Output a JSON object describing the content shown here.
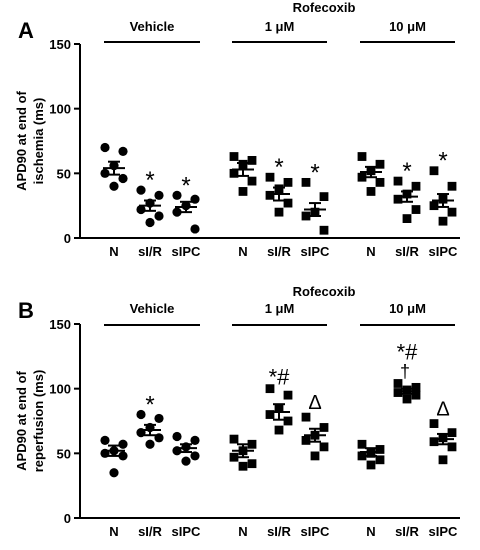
{
  "chart_data": [
    {
      "panel_label": "A",
      "type": "scatter",
      "ylabel_lines": [
        "APD90 at end of",
        "ischemia (ms)"
      ],
      "ylim": [
        0,
        150
      ],
      "yticks": [
        "0",
        "50",
        "100",
        "150"
      ],
      "group_headers": [
        "Vehicle",
        "1 μM",
        "10 μM"
      ],
      "drug_label": "Rofecoxib",
      "categories": [
        "N",
        "sI/R",
        "sIPC",
        "N",
        "sI/R",
        "sIPC",
        "N",
        "sI/R",
        "sIPC"
      ],
      "series": [
        {
          "group": "Vehicle",
          "condition": "N",
          "marker": "circle",
          "mean": 54,
          "sem": 5,
          "points": [
            70,
            67,
            56,
            50,
            46,
            40
          ],
          "annotation": ""
        },
        {
          "group": "Vehicle",
          "condition": "sI/R",
          "marker": "circle",
          "mean": 25,
          "sem": 4,
          "points": [
            37,
            33,
            27,
            22,
            17,
            12
          ],
          "annotation": "*"
        },
        {
          "group": "Vehicle",
          "condition": "sIPC",
          "marker": "circle",
          "mean": 24,
          "sem": 4,
          "points": [
            33,
            30,
            25,
            20,
            7
          ],
          "annotation": "*"
        },
        {
          "group": "1 μM",
          "condition": "N",
          "marker": "square",
          "mean": 53,
          "sem": 5,
          "points": [
            63,
            60,
            57,
            50,
            44,
            36
          ],
          "annotation": ""
        },
        {
          "group": "1 μM",
          "condition": "sI/R",
          "marker": "square",
          "mean": 34,
          "sem": 5,
          "points": [
            47,
            43,
            38,
            33,
            27,
            20
          ],
          "annotation": "*"
        },
        {
          "group": "1 μM",
          "condition": "sIPC",
          "marker": "square",
          "mean": 22,
          "sem": 5,
          "points": [
            43,
            32,
            20,
            17,
            6
          ],
          "annotation": "*"
        },
        {
          "group": "10 μM",
          "condition": "N",
          "marker": "square",
          "mean": 51,
          "sem": 4,
          "points": [
            63,
            57,
            52,
            47,
            43,
            36
          ],
          "annotation": ""
        },
        {
          "group": "10 μM",
          "condition": "sI/R",
          "marker": "square",
          "mean": 32,
          "sem": 4,
          "points": [
            44,
            40,
            34,
            30,
            22,
            15
          ],
          "annotation": "*"
        },
        {
          "group": "10 μM",
          "condition": "sIPC",
          "marker": "square",
          "mean": 29,
          "sem": 5,
          "points": [
            52,
            40,
            30,
            25,
            20,
            13
          ],
          "annotation": "*"
        }
      ]
    },
    {
      "panel_label": "B",
      "type": "scatter",
      "ylabel_lines": [
        "APD90 at end of",
        "reperfusion (ms)"
      ],
      "ylim": [
        0,
        150
      ],
      "yticks": [
        "0",
        "50",
        "100",
        "150"
      ],
      "group_headers": [
        "Vehicle",
        "1 μM",
        "10 μM"
      ],
      "drug_label": "Rofecoxib",
      "categories": [
        "N",
        "sI/R",
        "sIPC",
        "N",
        "sI/R",
        "sIPC",
        "N",
        "sI/R",
        "sIPC"
      ],
      "series": [
        {
          "group": "Vehicle",
          "condition": "N",
          "marker": "circle",
          "mean": 52,
          "sem": 4,
          "points": [
            60,
            57,
            52,
            50,
            48,
            35
          ],
          "annotation": ""
        },
        {
          "group": "Vehicle",
          "condition": "sI/R",
          "marker": "circle",
          "mean": 68,
          "sem": 4,
          "points": [
            80,
            77,
            70,
            66,
            62,
            57
          ],
          "annotation": "*"
        },
        {
          "group": "Vehicle",
          "condition": "sIPC",
          "marker": "circle",
          "mean": 54,
          "sem": 3,
          "points": [
            63,
            60,
            55,
            52,
            48,
            44
          ],
          "annotation": ""
        },
        {
          "group": "1 μM",
          "condition": "N",
          "marker": "square",
          "mean": 52,
          "sem": 5,
          "points": [
            61,
            57,
            52,
            47,
            42,
            40
          ],
          "annotation": ""
        },
        {
          "group": "1 μM",
          "condition": "sI/R",
          "marker": "square",
          "mean": 82,
          "sem": 6,
          "points": [
            100,
            95,
            85,
            80,
            75,
            68
          ],
          "annotation": "*#"
        },
        {
          "group": "1 μM",
          "condition": "sIPC",
          "marker": "square",
          "mean": 64,
          "sem": 5,
          "points": [
            78,
            70,
            64,
            60,
            55,
            48
          ],
          "annotation": "Δ"
        },
        {
          "group": "10 μM",
          "condition": "N",
          "marker": "square",
          "mean": 51,
          "sem": 3,
          "points": [
            57,
            53,
            50,
            48,
            45,
            41
          ],
          "annotation": ""
        },
        {
          "group": "10 μM",
          "condition": "sI/R",
          "marker": "square",
          "mean": 98,
          "sem": 2,
          "points": [
            104,
            101,
            99,
            97,
            95,
            92
          ],
          "annotation": "*#†"
        },
        {
          "group": "10 μM",
          "condition": "sIPC",
          "marker": "square",
          "mean": 61,
          "sem": 4,
          "points": [
            73,
            66,
            62,
            59,
            55,
            45
          ],
          "annotation": "Δ"
        }
      ]
    }
  ]
}
